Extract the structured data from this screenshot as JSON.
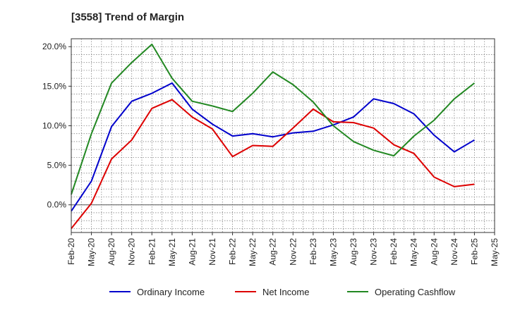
{
  "chart_data": {
    "type": "line",
    "title": "[3558]  Trend of Margin",
    "xlabel": "",
    "ylabel": "",
    "x_tick_labels": [
      "Feb-20",
      "May-20",
      "Aug-20",
      "Nov-20",
      "Feb-21",
      "May-21",
      "Aug-21",
      "Nov-21",
      "Feb-22",
      "May-22",
      "Aug-22",
      "Nov-22",
      "Feb-23",
      "May-23",
      "Aug-23",
      "Nov-23",
      "Feb-24",
      "May-24",
      "Aug-24",
      "Nov-24",
      "Feb-25",
      "May-25"
    ],
    "categories": [
      "Feb-20",
      "May-20",
      "Aug-20",
      "Nov-20",
      "Feb-21",
      "May-21",
      "Aug-21",
      "Nov-21",
      "Feb-22",
      "May-22",
      "Aug-22",
      "Nov-22",
      "Feb-23",
      "May-23",
      "Aug-23",
      "Nov-23",
      "Feb-24",
      "May-24",
      "Aug-24",
      "Nov-24",
      "Feb-25"
    ],
    "y_ticks": [
      0,
      5,
      10,
      15,
      20
    ],
    "y_tick_labels": [
      "0.0%",
      "5.0%",
      "10.0%",
      "15.0%",
      "20.0%"
    ],
    "ylim": [
      -3.5,
      21
    ],
    "grid": true,
    "legend_position": "bottom",
    "series": [
      {
        "name": "Ordinary Income",
        "color": "#0000cc",
        "values": [
          -0.8,
          3.0,
          9.9,
          13.1,
          14.1,
          15.4,
          12.1,
          10.2,
          8.7,
          9.0,
          8.6,
          9.1,
          9.3,
          10.1,
          11.1,
          13.4,
          12.8,
          11.5,
          8.8,
          6.7,
          8.2
        ]
      },
      {
        "name": "Net Income",
        "color": "#dd0000",
        "values": [
          -3.0,
          0.2,
          5.8,
          8.2,
          12.2,
          13.3,
          11.1,
          9.6,
          6.1,
          7.5,
          7.4,
          9.7,
          12.1,
          10.5,
          10.4,
          9.7,
          7.6,
          6.5,
          3.5,
          2.3,
          2.6
        ]
      },
      {
        "name": "Operating Cashflow",
        "color": "#228822",
        "values": [
          1.3,
          9.0,
          15.4,
          18.0,
          20.3,
          16.0,
          13.1,
          12.5,
          11.8,
          14.1,
          16.8,
          15.2,
          13.0,
          10.0,
          8.0,
          6.9,
          6.2,
          8.7,
          10.7,
          13.4,
          15.4
        ]
      }
    ]
  }
}
